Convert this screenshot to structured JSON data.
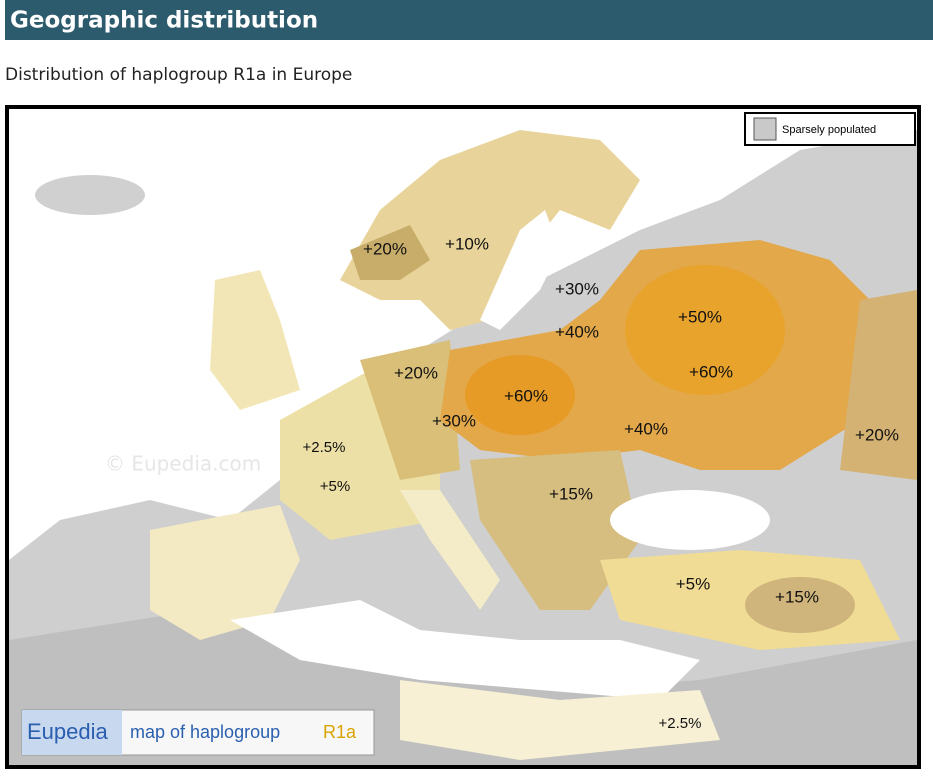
{
  "header": {
    "title": "Geographic distribution"
  },
  "subtitle": "Distribution of haplogroup R1a in Europe",
  "map": {
    "legend": "Sparsely populated",
    "watermark": "© Eupedia.com",
    "logo": {
      "brand": "Eupedia",
      "text": "map of haplogroup",
      "haplogroup": "R1a"
    },
    "labels": [
      "+20%",
      "+10%",
      "+30%",
      "+40%",
      "+50%",
      "+60%",
      "+20%",
      "+60%",
      "+30%",
      "+40%",
      "+20%",
      "+2.5%",
      "+5%",
      "+15%",
      "+5%",
      "+15%",
      "+2.5%"
    ]
  }
}
